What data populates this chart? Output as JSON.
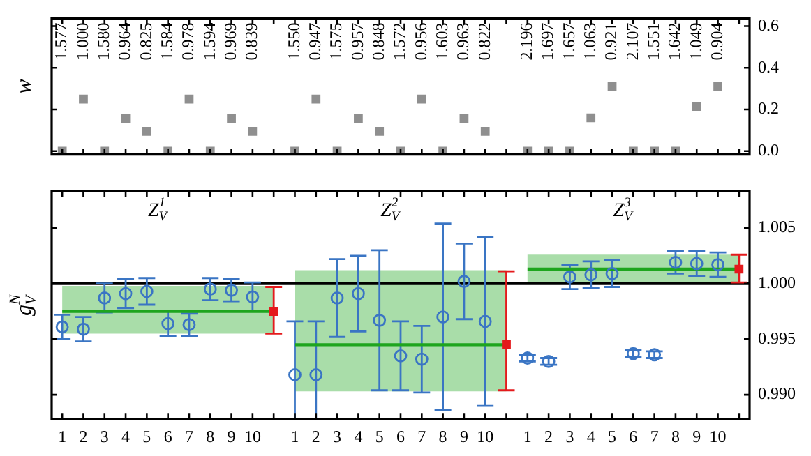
{
  "chart_data": [
    {
      "type": "scatter",
      "ylabel": "w",
      "color": "#8f8f8f",
      "marker": "square",
      "categories": [
        "1",
        "2",
        "3",
        "4",
        "5",
        "6",
        "7",
        "8",
        "9",
        "10",
        null,
        "1",
        "2",
        "3",
        "4",
        "5",
        "6",
        "7",
        "8",
        "9",
        "10",
        null,
        "1",
        "2",
        "3",
        "4",
        "5",
        "6",
        "7",
        "8",
        "9",
        "10",
        null
      ],
      "values": [
        0,
        0.25,
        0,
        0.155,
        0.095,
        0,
        0.25,
        0,
        0.155,
        0.095,
        null,
        0,
        0.25,
        0,
        0.155,
        0.095,
        0,
        0.25,
        0,
        0.155,
        0.095,
        null,
        0,
        0,
        0,
        0.16,
        0.31,
        0,
        0,
        0,
        0.215,
        0.31,
        null
      ],
      "ylim": [
        -0.016,
        0.637
      ],
      "yticks": [
        {
          "value": 0,
          "label": "0.0"
        },
        {
          "value": 0.2,
          "label": "0.2"
        },
        {
          "value": 0.4,
          "label": "0.4"
        },
        {
          "value": 0.6,
          "label": "0.6"
        }
      ],
      "tick_labels": "y",
      "annotations": [
        "1.577",
        "1.000",
        "1.580",
        "0.964",
        "0.825",
        "1.584",
        "0.978",
        "1.594",
        "0.969",
        "0.839",
        "1.550",
        "0.947",
        "1.575",
        "0.957",
        "0.848",
        "1.572",
        "0.956",
        "1.603",
        "0.963",
        "0.822",
        "2.196",
        "1.697",
        "1.657",
        "1.063",
        "0.921",
        "2.107",
        "1.551",
        "1.642",
        "1.049",
        "0.904"
      ]
    },
    {
      "type": "scatter",
      "ylabel": "g$_{V}$$^{N}$",
      "categories": [
        "1",
        "2",
        "3",
        "4",
        "5",
        "6",
        "7",
        "8",
        "9",
        "10",
        null,
        "1",
        "2",
        "3",
        "4",
        "5",
        "6",
        "7",
        "8",
        "9",
        "10",
        null,
        "1",
        "2",
        "3",
        "4",
        "5",
        "6",
        "7",
        "8",
        "9",
        "10",
        null
      ],
      "ylim": [
        0.9878,
        1.0083
      ],
      "yticks": [
        {
          "value": 0.99,
          "label": "0.990"
        },
        {
          "value": 0.995,
          "label": "0.995"
        },
        {
          "value": 1,
          "label": "1.000"
        },
        {
          "value": 1.005,
          "label": "1.005"
        }
      ],
      "ref_lines": [
        {
          "axis": "y",
          "value": 1,
          "color": "#000000"
        }
      ],
      "annotations": [
        "Z$_{V}$$^{1}$",
        "Z$_{V}$$^{2}$",
        "Z$_{V}$$^{3}$"
      ],
      "series": [
        {
          "type": "line",
          "color": "#1ea51e",
          "values": [
            0.9975,
            0.9975,
            0.9975,
            0.9975,
            0.9975,
            0.9975,
            0.9975,
            0.9975,
            0.9975,
            0.9975,
            0.9975,
            null,
            null,
            null,
            null,
            null,
            null,
            null,
            null,
            null,
            null,
            null,
            null,
            null,
            null,
            null,
            null,
            null,
            null,
            null,
            null,
            null,
            null
          ],
          "lower": [
            0.9955,
            0.9955,
            0.9955,
            0.9955,
            0.9955,
            0.9955,
            0.9955,
            0.9955,
            0.9955,
            0.9955,
            0.9955,
            null,
            null,
            null,
            null,
            null,
            null,
            null,
            null,
            null,
            null,
            null,
            null,
            null,
            null,
            null,
            null,
            null,
            null,
            null,
            null,
            null,
            null
          ],
          "upper": [
            0.9998,
            0.9998,
            0.9998,
            0.9998,
            0.9998,
            0.9998,
            0.9998,
            0.9998,
            0.9998,
            0.9998,
            0.9998,
            null,
            null,
            null,
            null,
            null,
            null,
            null,
            null,
            null,
            null,
            null,
            null,
            null,
            null,
            null,
            null,
            null,
            null,
            null,
            null,
            null,
            null
          ]
        },
        {
          "type": "line",
          "color": "#1ea51e",
          "values": [
            null,
            null,
            null,
            null,
            null,
            null,
            null,
            null,
            null,
            null,
            null,
            0.9945,
            0.9945,
            0.9945,
            0.9945,
            0.9945,
            0.9945,
            0.9945,
            0.9945,
            0.9945,
            0.9945,
            0.9945,
            null,
            null,
            null,
            null,
            null,
            null,
            null,
            null,
            null,
            null,
            null
          ],
          "lower": [
            null,
            null,
            null,
            null,
            null,
            null,
            null,
            null,
            null,
            null,
            null,
            0.9903,
            0.9903,
            0.9903,
            0.9903,
            0.9903,
            0.9903,
            0.9903,
            0.9903,
            0.9903,
            0.9903,
            0.9903,
            null,
            null,
            null,
            null,
            null,
            null,
            null,
            null,
            null,
            null,
            null
          ],
          "upper": [
            null,
            null,
            null,
            null,
            null,
            null,
            null,
            null,
            null,
            null,
            null,
            1.0012,
            1.0012,
            1.0012,
            1.0012,
            1.0012,
            1.0012,
            1.0012,
            1.0012,
            1.0012,
            1.0012,
            1.0012,
            null,
            null,
            null,
            null,
            null,
            null,
            null,
            null,
            null,
            null,
            null
          ]
        },
        {
          "type": "line",
          "color": "#1ea51e",
          "values": [
            null,
            null,
            null,
            null,
            null,
            null,
            null,
            null,
            null,
            null,
            null,
            null,
            null,
            null,
            null,
            null,
            null,
            null,
            null,
            null,
            null,
            null,
            1.0013,
            1.0013,
            1.0013,
            1.0013,
            1.0013,
            1.0013,
            1.0013,
            1.0013,
            1.0013,
            1.0013,
            1.0013
          ],
          "lower": [
            null,
            null,
            null,
            null,
            null,
            null,
            null,
            null,
            null,
            null,
            null,
            null,
            null,
            null,
            null,
            null,
            null,
            null,
            null,
            null,
            null,
            null,
            1.0,
            1.0,
            1.0,
            1.0,
            1.0,
            1.0,
            1.0,
            1.0,
            1.0,
            1.0,
            1.0
          ],
          "upper": [
            null,
            null,
            null,
            null,
            null,
            null,
            null,
            null,
            null,
            null,
            null,
            null,
            null,
            null,
            null,
            null,
            null,
            null,
            null,
            null,
            null,
            null,
            1.0026,
            1.0026,
            1.0026,
            1.0026,
            1.0026,
            1.0026,
            1.0026,
            1.0026,
            1.0026,
            1.0026,
            1.0026
          ]
        },
        {
          "type": "scatter",
          "color": "#3a75c4",
          "marker": "circle",
          "values": [
            0.9961,
            0.9959,
            0.9987,
            0.9991,
            0.9993,
            0.9964,
            0.9963,
            0.9995,
            0.9994,
            0.9988,
            null,
            0.9918,
            0.9918,
            0.9987,
            0.9991,
            0.9967,
            0.9935,
            0.9932,
            0.997,
            1.0002,
            0.9966,
            null,
            0.9933,
            0.993,
            1.0006,
            1.0008,
            1.0009,
            0.9937,
            0.9936,
            1.0019,
            1.0018,
            1.0017,
            null
          ],
          "errors": [
            0.0011,
            0.0011,
            0.0013,
            0.0013,
            0.0012,
            0.0011,
            0.001,
            0.001,
            0.001,
            0.0013,
            null,
            0.0048,
            0.0048,
            0.0035,
            0.0034,
            0.0063,
            0.0031,
            0.003,
            0.0084,
            0.0034,
            0.0076,
            null,
            0.0003,
            0.0003,
            0.0011,
            0.0012,
            0.0012,
            0.0003,
            0.0003,
            0.001,
            0.0011,
            0.0011,
            null
          ]
        },
        {
          "type": "scatter",
          "color": "#e41a1c",
          "marker": "square",
          "values": [
            null,
            null,
            null,
            null,
            null,
            null,
            null,
            null,
            null,
            null,
            0.9975,
            null,
            null,
            null,
            null,
            null,
            null,
            null,
            null,
            null,
            null,
            0.9945,
            null,
            null,
            null,
            null,
            null,
            null,
            null,
            null,
            null,
            null,
            1.0013
          ],
          "errors": [
            null,
            null,
            null,
            null,
            null,
            null,
            null,
            null,
            null,
            null,
            [
              0.9955,
              0.9997
            ],
            null,
            null,
            null,
            null,
            null,
            null,
            null,
            null,
            null,
            null,
            [
              0.9904,
              1.0011
            ],
            null,
            null,
            null,
            null,
            null,
            null,
            null,
            null,
            null,
            null,
            [
              1.0001,
              1.0026
            ]
          ]
        }
      ]
    }
  ]
}
